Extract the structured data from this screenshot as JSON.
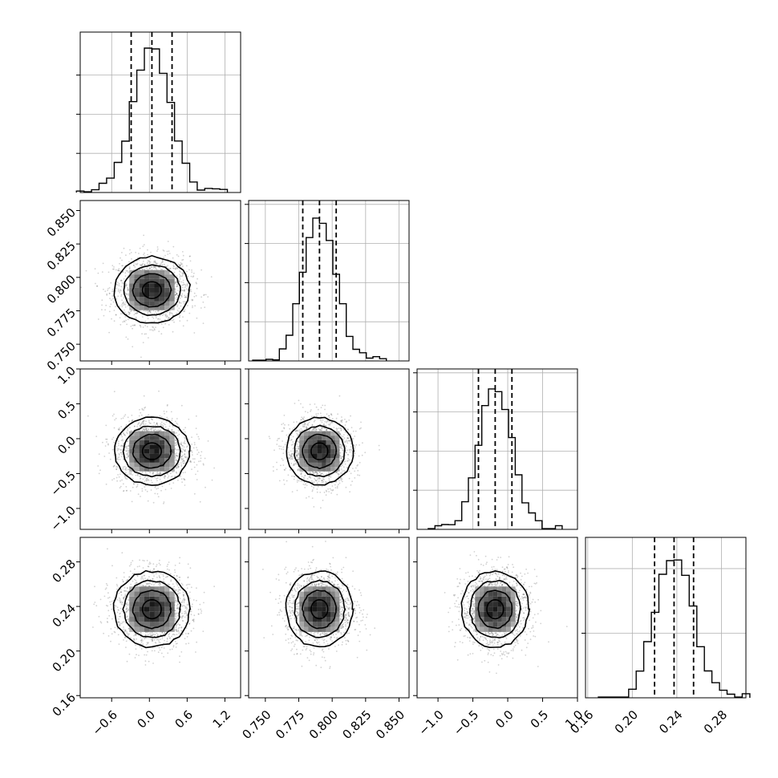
{
  "chart_data": {
    "type": "corner",
    "grid": true,
    "parameters": [
      {
        "range": [
          -1.1,
          1.45
        ],
        "ticks": [
          -0.6,
          0.0,
          0.6,
          1.2
        ],
        "tick_labels": [
          "−0.6",
          "0.0",
          "0.6",
          "1.2"
        ],
        "mean": 0.04,
        "sigma": 0.3,
        "quantiles": [
          -0.29,
          0.04,
          0.36
        ],
        "y_axis_labeled": false,
        "x_axis_labeled": true
      },
      {
        "range": [
          0.7375,
          0.8575
        ],
        "ticks": [
          0.75,
          0.775,
          0.8,
          0.825,
          0.85
        ],
        "tick_labels": [
          "0.750",
          "0.775",
          "0.800",
          "0.825",
          "0.850"
        ],
        "mean": 0.7905,
        "sigma": 0.0125,
        "quantiles": [
          0.778,
          0.7905,
          0.803
        ],
        "y_axis_labeled": true,
        "x_axis_labeled": true
      },
      {
        "range": [
          -1.3,
          1.0
        ],
        "ticks": [
          -1.0,
          -0.5,
          0.0,
          0.5,
          1.0
        ],
        "tick_labels": [
          "−1.0",
          "−0.5",
          "0.0",
          "0.5",
          "1.0"
        ],
        "mean": -0.18,
        "sigma": 0.24,
        "quantiles": [
          -0.42,
          -0.18,
          0.06
        ],
        "y_axis_labeled": true,
        "x_axis_labeled": true
      },
      {
        "range": [
          0.158,
          0.302
        ],
        "ticks": [
          0.16,
          0.2,
          0.24,
          0.28
        ],
        "tick_labels": [
          "0.16",
          "0.20",
          "0.24",
          "0.28"
        ],
        "mean": 0.2375,
        "sigma": 0.017,
        "quantiles": [
          0.22,
          0.2375,
          0.255
        ],
        "y_axis_labeled": true,
        "x_axis_labeled": true
      }
    ],
    "histogram_ticks": [
      [
        0.2,
        0.4,
        0.6
      ],
      [
        0.2,
        0.4,
        0.6,
        0.8
      ],
      [
        0.2,
        0.4,
        0.6,
        0.8
      ],
      [
        0.33,
        0.66
      ]
    ],
    "contour_levels_sigma": [
      0.5,
      1.0,
      1.5,
      2.0
    ],
    "samples_per_panel": 1600
  }
}
